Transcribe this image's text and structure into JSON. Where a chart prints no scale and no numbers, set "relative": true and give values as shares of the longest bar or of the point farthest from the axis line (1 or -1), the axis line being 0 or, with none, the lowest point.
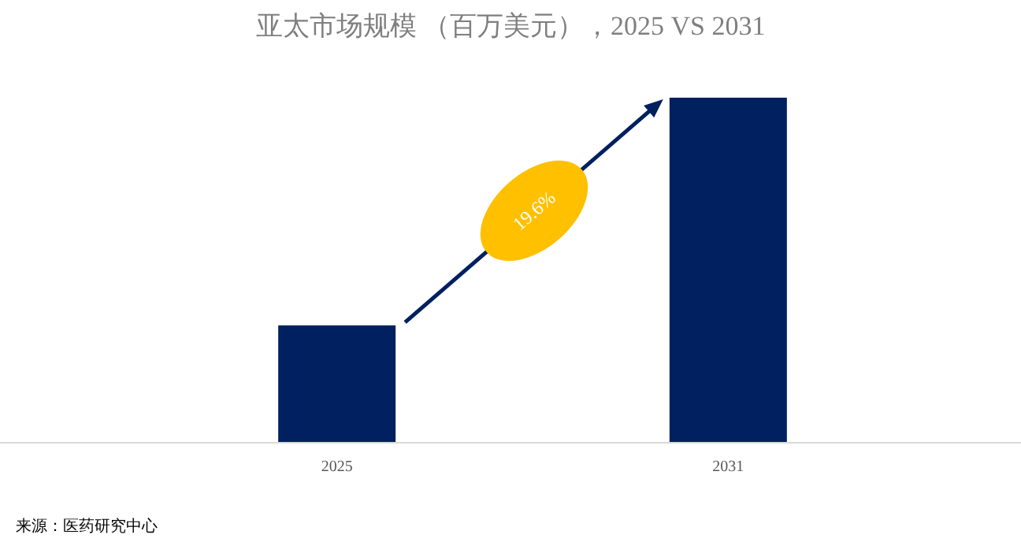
{
  "chart_data": {
    "type": "bar",
    "title": "亚太市场规模 （百万美元），2025 VS 2031",
    "categories": [
      "2025",
      "2031"
    ],
    "values": [
      0.34,
      1
    ],
    "color": "#002060",
    "relative": true,
    "grid": false,
    "annotations": [
      "19.6%",
      "来源：医药研究中心"
    ]
  }
}
